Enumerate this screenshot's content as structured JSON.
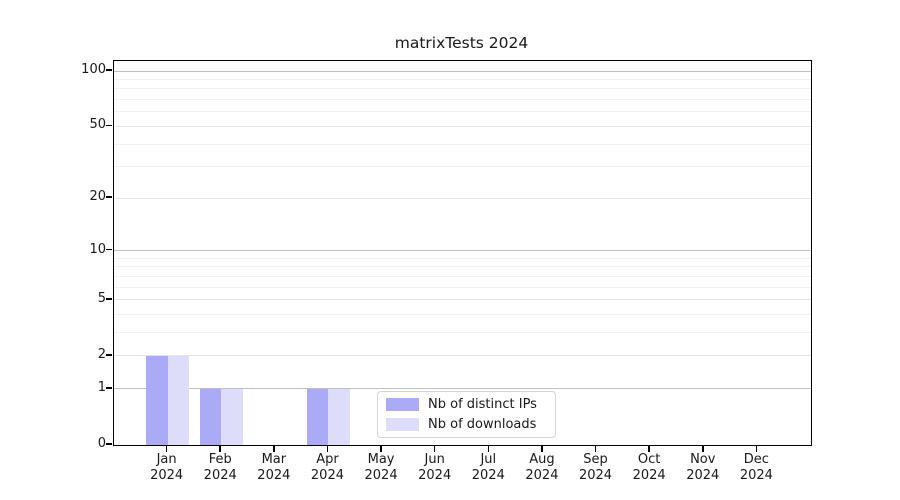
{
  "chart_data": {
    "type": "bar",
    "title": "matrixTests 2024",
    "categories": [
      "Jan",
      "Feb",
      "Mar",
      "Apr",
      "May",
      "Jun",
      "Jul",
      "Aug",
      "Sep",
      "Oct",
      "Nov",
      "Dec"
    ],
    "category_year_label": "2024",
    "series": [
      {
        "name": "Nb of distinct IPs",
        "color": "#aaaaf6",
        "values": [
          2,
          1,
          0,
          1,
          0,
          0,
          0,
          0,
          0,
          0,
          0,
          0
        ]
      },
      {
        "name": "Nb of downloads",
        "color": "#ddddf9",
        "values": [
          2,
          1,
          0,
          1,
          0,
          0,
          0,
          0,
          0,
          0,
          0,
          0
        ]
      }
    ],
    "xlabel": "",
    "ylabel": "",
    "yscale": "log1p",
    "ylim": [
      0,
      100
    ],
    "y_tick_labels": [
      0,
      1,
      2,
      5,
      10,
      20,
      50,
      100
    ],
    "y_grid_strong": [
      1,
      10,
      100
    ],
    "y_grid_light": [
      2,
      5,
      20,
      50
    ],
    "y_grid_minor": [
      3,
      4,
      6,
      7,
      8,
      9,
      30,
      40,
      60,
      70,
      80,
      90
    ],
    "grid": "horizontal",
    "legend_position": "lower-center-inside",
    "frame": "full-box",
    "colors": {
      "spine": "#000000",
      "text": "#1a1a1a",
      "grid_strong": "#c0c0c0",
      "grid_light": "#e4e4e4",
      "grid_minor": "#f1f1f1",
      "legend_border": "#d5d5d5",
      "background": "#ffffff"
    }
  }
}
